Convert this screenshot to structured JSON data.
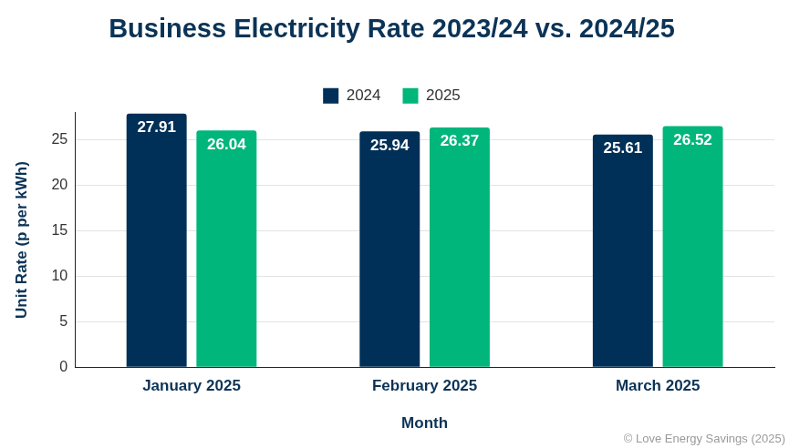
{
  "chart_data": {
    "type": "bar",
    "title": "Business Electricity Rate 2023/24 vs. 2024/25",
    "x_label": "Month",
    "y_label": "Unit Rate (p per kWh)",
    "categories": [
      "January 2025",
      "February 2025",
      "March 2025"
    ],
    "series": [
      {
        "name": "2024",
        "color": "#003057",
        "values": [
          27.91,
          25.94,
          25.61
        ]
      },
      {
        "name": "2025",
        "color": "#00b67a",
        "values": [
          26.04,
          26.37,
          26.52
        ]
      }
    ],
    "ylim": [
      0,
      28
    ],
    "yticks": [
      0,
      5,
      10,
      15,
      20,
      25
    ],
    "grid": true,
    "legend": "top",
    "data_labels": true,
    "annotation": "© Love Energy Savings (2025)"
  }
}
